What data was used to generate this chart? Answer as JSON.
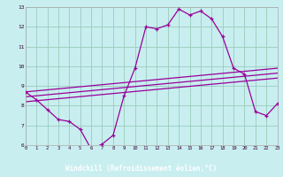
{
  "xlabel": "Windchill (Refroidissement éolien,°C)",
  "xlim": [
    0,
    23
  ],
  "ylim": [
    6,
    13
  ],
  "xticks": [
    0,
    1,
    2,
    3,
    4,
    5,
    6,
    7,
    8,
    9,
    10,
    11,
    12,
    13,
    14,
    15,
    16,
    17,
    18,
    19,
    20,
    21,
    22,
    23
  ],
  "yticks": [
    6,
    7,
    8,
    9,
    10,
    11,
    12,
    13
  ],
  "background_color": "#c8eef0",
  "line_color": "#990099",
  "grid_color": "#99ccbb",
  "label_bg_color": "#660066",
  "label_text_color": "#ffffff",
  "main_x": [
    0,
    1,
    2,
    3,
    4,
    5,
    6,
    7,
    8,
    9,
    10,
    11,
    12,
    13,
    14,
    15,
    16,
    17,
    18,
    19,
    20,
    21,
    22,
    23
  ],
  "main_y": [
    8.7,
    8.3,
    7.8,
    7.3,
    7.2,
    6.8,
    5.8,
    6.05,
    6.5,
    8.5,
    9.9,
    12.0,
    11.9,
    12.1,
    12.9,
    12.6,
    12.8,
    12.4,
    11.5,
    9.9,
    9.6,
    7.7,
    7.5,
    8.1
  ],
  "trend1_x": [
    0,
    23
  ],
  "trend1_y": [
    8.7,
    9.9
  ],
  "trend2_x": [
    0,
    23
  ],
  "trend2_y": [
    8.45,
    9.65
  ],
  "trend3_x": [
    0,
    23
  ],
  "trend3_y": [
    8.2,
    9.4
  ]
}
